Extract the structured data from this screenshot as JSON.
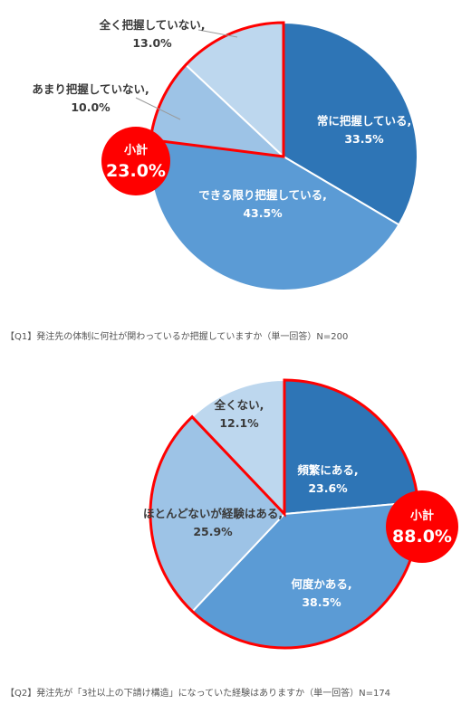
{
  "colors": {
    "dark": "#2e75b6",
    "mid": "#5b9bd5",
    "light": "#9dc3e6",
    "lightest": "#bdd7ee",
    "accent": "#ff0000"
  },
  "chart_data": [
    {
      "type": "pie",
      "caption": "【Q1】発注先の体制に何社が関わっているか把握していますか（単一回答）N=200",
      "slices": [
        {
          "label": "常に把握している,",
          "value": 33.5,
          "value_text": "33.5%",
          "color": "#2e75b6"
        },
        {
          "label": "できる限り把握している,",
          "value": 43.5,
          "value_text": "43.5%",
          "color": "#5b9bd5"
        },
        {
          "label": "あまり把握していない,",
          "value": 10.0,
          "value_text": "10.0%",
          "color": "#9dc3e6"
        },
        {
          "label": "全く把握していない,",
          "value": 13.0,
          "value_text": "13.0%",
          "color": "#bdd7ee"
        }
      ],
      "subtotal": {
        "label": "小計",
        "value": 23.0,
        "value_text": "23.0%",
        "covers": [
          "あまり把握していない,",
          "全く把握していない,"
        ]
      }
    },
    {
      "type": "pie",
      "caption": "【Q2】発注先が「3社以上の下請け構造」になっていた経験はありますか（単一回答）N=174",
      "slices": [
        {
          "label": "頻繁にある,",
          "value": 23.6,
          "value_text": "23.6%",
          "color": "#2e75b6"
        },
        {
          "label": "何度かある,",
          "value": 38.5,
          "value_text": "38.5%",
          "color": "#5b9bd5"
        },
        {
          "label": "ほとんどないが経験はある,",
          "value": 25.9,
          "value_text": "25.9%",
          "color": "#9dc3e6"
        },
        {
          "label": "全くない,",
          "value": 12.1,
          "value_text": "12.1%",
          "color": "#bdd7ee"
        }
      ],
      "subtotal": {
        "label": "小計",
        "value": 88.0,
        "value_text": "88.0%",
        "covers": [
          "頻繁にある,",
          "何度かある,",
          "ほとんどないが経験はある,"
        ]
      }
    }
  ]
}
